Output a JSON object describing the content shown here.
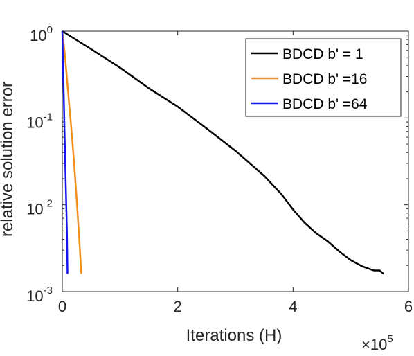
{
  "chart_data": {
    "type": "line",
    "xlabel": "Iterations (H)",
    "ylabel": "relative solution error",
    "x_multiplier_label": "×10",
    "x_multiplier_exponent": "5",
    "xlim": [
      0,
      6
    ],
    "ylim": [
      0.001,
      1
    ],
    "yscale": "log",
    "xticks": [
      0,
      2,
      4,
      6
    ],
    "xtick_labels": [
      "0",
      "2",
      "4",
      "6"
    ],
    "yticks": [
      0.001,
      0.01,
      0.1,
      1
    ],
    "ytick_labels": [
      {
        "base": "10",
        "exp": "-3"
      },
      {
        "base": "10",
        "exp": "-2"
      },
      {
        "base": "10",
        "exp": "-1"
      },
      {
        "base": "10",
        "exp": "0"
      }
    ],
    "grid": false,
    "legend_position": "top-right",
    "series": [
      {
        "name": "BDCD b' = 1",
        "color": "#000000",
        "x": [
          0,
          0.5,
          1.0,
          1.5,
          2.0,
          2.5,
          3.0,
          3.5,
          3.8,
          4.0,
          4.2,
          4.4,
          4.6,
          4.8,
          5.0,
          5.2,
          5.4,
          5.5,
          5.57
        ],
        "y": [
          1,
          0.62,
          0.38,
          0.22,
          0.135,
          0.076,
          0.042,
          0.0215,
          0.0132,
          0.0088,
          0.0062,
          0.0047,
          0.0038,
          0.0029,
          0.0023,
          0.00195,
          0.00175,
          0.00175,
          0.0016
        ]
      },
      {
        "name": "BDCD b' =16",
        "color": "#f28e1c",
        "x": [
          0,
          0.05,
          0.1,
          0.15,
          0.2,
          0.25,
          0.3,
          0.33
        ],
        "y": [
          1,
          0.49,
          0.2,
          0.085,
          0.033,
          0.0115,
          0.0035,
          0.0016
        ]
      },
      {
        "name": "BDCD b' =64",
        "color": "#1515ee",
        "x": [
          0,
          0.02,
          0.04,
          0.06,
          0.08,
          0.09
        ],
        "y": [
          1,
          0.26,
          0.066,
          0.017,
          0.0048,
          0.0016
        ]
      }
    ]
  }
}
